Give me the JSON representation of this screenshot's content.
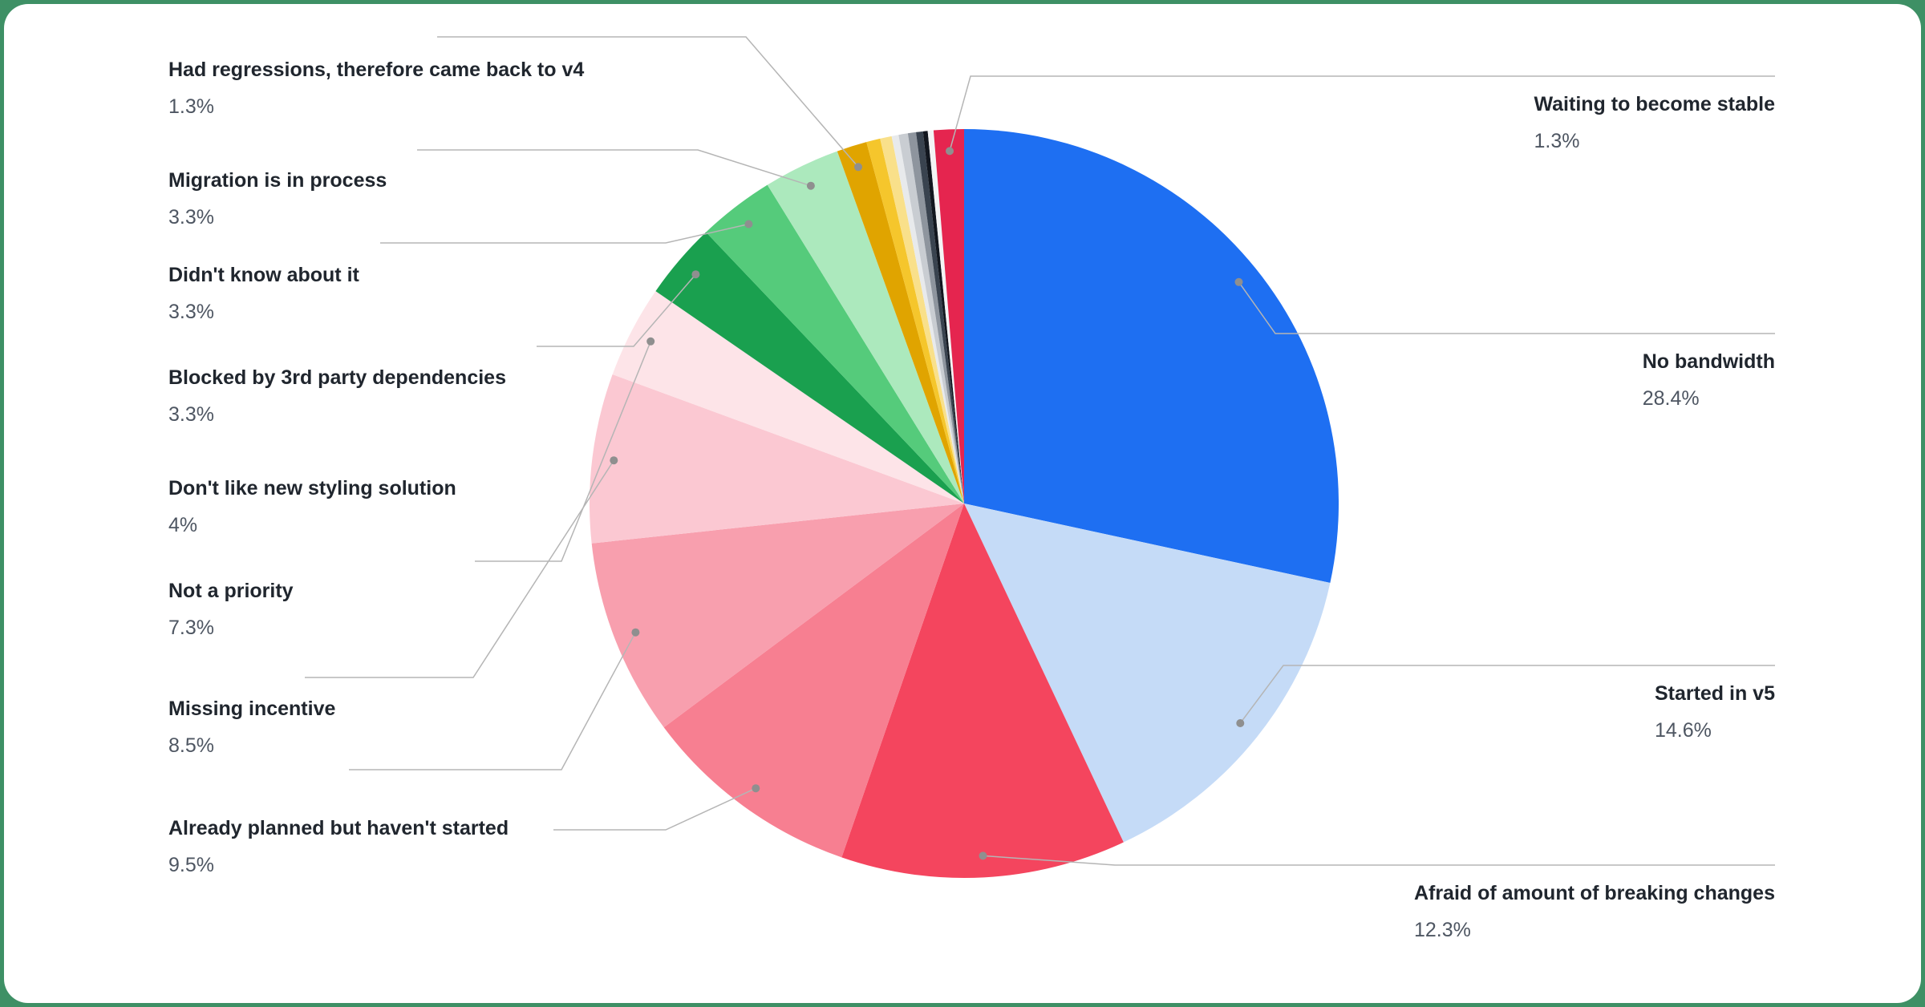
{
  "theme": {
    "background_color": "#3e9065",
    "card_color": "#ffffff",
    "label_color": "#20262e",
    "percent_color": "#4e5662",
    "leader_line_color": "#b5b5b5"
  },
  "chart_data": {
    "type": "pie",
    "legend_position": "callout-labels",
    "unit": "%",
    "slices": [
      {
        "label": "No bandwidth",
        "value": 28.4,
        "pct_label": "28.4%",
        "color": "#1e6ff2",
        "side": "right",
        "labeled": true
      },
      {
        "label": "Started in v5",
        "value": 14.6,
        "pct_label": "14.6%",
        "color": "#c5dbf7",
        "side": "right",
        "labeled": true
      },
      {
        "label": "Afraid of amount of breaking changes",
        "value": 12.3,
        "pct_label": "12.3%",
        "color": "#f4455e",
        "side": "right",
        "labeled": true
      },
      {
        "label": "Already planned but haven't started",
        "value": 9.5,
        "pct_label": "9.5%",
        "color": "#f77f91",
        "side": "left",
        "labeled": true
      },
      {
        "label": "Missing incentive",
        "value": 8.5,
        "pct_label": "8.5%",
        "color": "#f89fae",
        "side": "left",
        "labeled": true
      },
      {
        "label": "Not a priority",
        "value": 7.3,
        "pct_label": "7.3%",
        "color": "#fbc8d2",
        "side": "left",
        "labeled": true
      },
      {
        "label": "Don't like new styling solution",
        "value": 4,
        "pct_label": "4%",
        "color": "#fde4e8",
        "side": "left",
        "labeled": true
      },
      {
        "label": "Blocked by 3rd party dependencies",
        "value": 3.3,
        "pct_label": "3.3%",
        "color": "#1aa04f",
        "side": "left",
        "labeled": true
      },
      {
        "label": "Didn't know about it",
        "value": 3.3,
        "pct_label": "3.3%",
        "color": "#55cb7b",
        "side": "left",
        "labeled": true
      },
      {
        "label": "Migration is in process",
        "value": 3.3,
        "pct_label": "3.3%",
        "color": "#ace9bd",
        "side": "left",
        "labeled": true
      },
      {
        "label": "Had regressions, therefore came back to v4",
        "value": 1.3,
        "pct_label": "1.3%",
        "color": "#e0a400",
        "side": "left",
        "labeled": true
      },
      {
        "label": "",
        "value": 0.6,
        "color": "#f5c62c",
        "labeled": false
      },
      {
        "label": "",
        "value": 0.5,
        "color": "#f9e08a",
        "labeled": false
      },
      {
        "label": "",
        "value": 0.3,
        "color": "#e8eaec",
        "labeled": false
      },
      {
        "label": "",
        "value": 0.4,
        "color": "#c9cdd2",
        "labeled": false
      },
      {
        "label": "",
        "value": 0.35,
        "color": "#8e959e",
        "labeled": false
      },
      {
        "label": "",
        "value": 0.3,
        "color": "#39434f",
        "labeled": false
      },
      {
        "label": "",
        "value": 0.2,
        "color": "#12171f",
        "labeled": false
      },
      {
        "label": "",
        "value": 0.25,
        "color": "#f3f4f5",
        "labeled": false
      },
      {
        "label": "Waiting to become stable",
        "value": 1.3,
        "pct_label": "1.3%",
        "color": "#e5254f",
        "side": "right",
        "labeled": true
      }
    ]
  }
}
